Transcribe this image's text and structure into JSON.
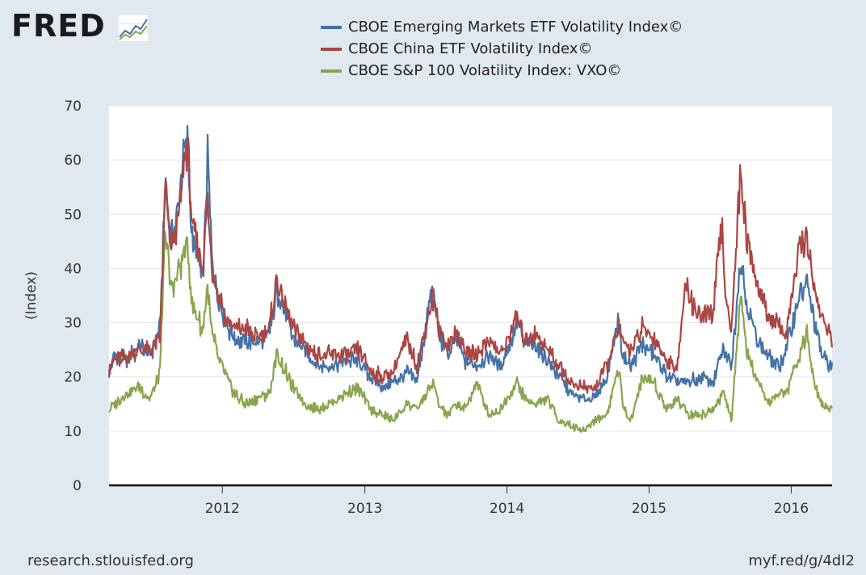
{
  "header": {
    "logo_text": "FRED",
    "logo_icon": "fred-graph-icon"
  },
  "footer": {
    "source": "research.stlouisfed.org",
    "short_link": "myf.red/g/4dI2"
  },
  "chart_data": {
    "type": "line",
    "title": "",
    "xlabel": "",
    "ylabel": "(Index)",
    "ylim": [
      0,
      70
    ],
    "yticks": [
      0,
      10,
      20,
      30,
      40,
      50,
      60,
      70
    ],
    "xlim": [
      "2011-03-16",
      "2016-04-15"
    ],
    "xticks": [
      {
        "label": "2012",
        "date": "2012-01-01"
      },
      {
        "label": "2013",
        "date": "2013-01-01"
      },
      {
        "label": "2014",
        "date": "2014-01-01"
      },
      {
        "label": "2015",
        "date": "2015-01-01"
      },
      {
        "label": "2016",
        "date": "2016-01-01"
      }
    ],
    "grid": true,
    "legend_position": "top",
    "series": [
      {
        "name": "CBOE Emerging Markets ETF Volatility Index©",
        "color": "#4572a7",
        "points": [
          [
            "2011-03-16",
            21
          ],
          [
            "2011-04-01",
            24
          ],
          [
            "2011-05-01",
            23
          ],
          [
            "2011-06-01",
            26
          ],
          [
            "2011-07-01",
            24
          ],
          [
            "2011-07-25",
            29
          ],
          [
            "2011-08-08",
            57
          ],
          [
            "2011-08-20",
            45
          ],
          [
            "2011-09-05",
            48
          ],
          [
            "2011-09-22",
            60
          ],
          [
            "2011-10-04",
            63
          ],
          [
            "2011-10-15",
            45
          ],
          [
            "2011-11-01",
            42
          ],
          [
            "2011-11-11",
            36
          ],
          [
            "2011-11-24",
            61
          ],
          [
            "2011-12-05",
            42
          ],
          [
            "2011-12-20",
            35
          ],
          [
            "2012-01-10",
            30
          ],
          [
            "2012-02-01",
            27
          ],
          [
            "2012-03-01",
            27
          ],
          [
            "2012-04-01",
            26
          ],
          [
            "2012-05-01",
            28
          ],
          [
            "2012-05-20",
            36
          ],
          [
            "2012-06-05",
            33
          ],
          [
            "2012-07-01",
            27
          ],
          [
            "2012-08-01",
            25
          ],
          [
            "2012-09-01",
            22
          ],
          [
            "2012-10-01",
            22
          ],
          [
            "2012-11-15",
            23
          ],
          [
            "2012-12-15",
            23
          ],
          [
            "2013-01-15",
            20
          ],
          [
            "2013-02-15",
            18
          ],
          [
            "2013-03-15",
            19
          ],
          [
            "2013-04-20",
            21
          ],
          [
            "2013-05-15",
            19
          ],
          [
            "2013-06-24",
            37
          ],
          [
            "2013-07-10",
            28
          ],
          [
            "2013-08-01",
            24
          ],
          [
            "2013-08-25",
            27
          ],
          [
            "2013-09-15",
            23
          ],
          [
            "2013-10-15",
            22
          ],
          [
            "2013-11-15",
            24
          ],
          [
            "2013-12-15",
            22
          ],
          [
            "2014-01-28",
            30
          ],
          [
            "2014-02-15",
            26
          ],
          [
            "2014-03-15",
            26
          ],
          [
            "2014-04-15",
            23
          ],
          [
            "2014-05-15",
            20
          ],
          [
            "2014-06-15",
            17
          ],
          [
            "2014-07-15",
            16
          ],
          [
            "2014-08-15",
            16
          ],
          [
            "2014-09-15",
            20
          ],
          [
            "2014-10-15",
            31
          ],
          [
            "2014-10-25",
            24
          ],
          [
            "2014-11-15",
            22
          ],
          [
            "2014-12-16",
            26
          ],
          [
            "2015-01-15",
            24
          ],
          [
            "2015-02-15",
            20
          ],
          [
            "2015-03-15",
            19
          ],
          [
            "2015-04-15",
            19
          ],
          [
            "2015-05-15",
            20
          ],
          [
            "2015-06-15",
            19
          ],
          [
            "2015-07-10",
            25
          ],
          [
            "2015-08-01",
            22
          ],
          [
            "2015-08-24",
            42
          ],
          [
            "2015-09-10",
            33
          ],
          [
            "2015-10-01",
            28
          ],
          [
            "2015-11-01",
            24
          ],
          [
            "2015-12-01",
            22
          ],
          [
            "2015-12-20",
            25
          ],
          [
            "2016-01-20",
            35
          ],
          [
            "2016-02-11",
            37
          ],
          [
            "2016-03-01",
            30
          ],
          [
            "2016-03-20",
            24
          ],
          [
            "2016-04-15",
            22
          ]
        ]
      },
      {
        "name": "CBOE China ETF Volatility Index©",
        "color": "#aa4643",
        "points": [
          [
            "2011-03-16",
            22
          ],
          [
            "2011-04-01",
            23
          ],
          [
            "2011-05-01",
            24
          ],
          [
            "2011-06-01",
            25
          ],
          [
            "2011-07-01",
            25
          ],
          [
            "2011-07-25",
            27
          ],
          [
            "2011-08-08",
            56
          ],
          [
            "2011-08-20",
            44
          ],
          [
            "2011-09-05",
            46
          ],
          [
            "2011-09-22",
            58
          ],
          [
            "2011-10-04",
            64
          ],
          [
            "2011-10-15",
            47
          ],
          [
            "2011-11-01",
            44
          ],
          [
            "2011-11-11",
            40
          ],
          [
            "2011-11-24",
            52
          ],
          [
            "2011-12-05",
            40
          ],
          [
            "2011-12-20",
            36
          ],
          [
            "2012-01-10",
            31
          ],
          [
            "2012-02-01",
            29
          ],
          [
            "2012-03-01",
            29
          ],
          [
            "2012-04-01",
            27
          ],
          [
            "2012-05-01",
            29
          ],
          [
            "2012-05-20",
            38
          ],
          [
            "2012-06-05",
            34
          ],
          [
            "2012-07-01",
            29
          ],
          [
            "2012-08-01",
            26
          ],
          [
            "2012-09-01",
            24
          ],
          [
            "2012-10-01",
            24
          ],
          [
            "2012-11-15",
            24
          ],
          [
            "2012-12-15",
            25
          ],
          [
            "2013-01-15",
            21
          ],
          [
            "2013-02-15",
            20
          ],
          [
            "2013-03-15",
            21
          ],
          [
            "2013-04-20",
            27
          ],
          [
            "2013-05-15",
            22
          ],
          [
            "2013-06-24",
            35
          ],
          [
            "2013-07-10",
            29
          ],
          [
            "2013-08-01",
            26
          ],
          [
            "2013-08-25",
            28
          ],
          [
            "2013-09-15",
            25
          ],
          [
            "2013-10-15",
            24
          ],
          [
            "2013-11-15",
            27
          ],
          [
            "2013-12-15",
            24
          ],
          [
            "2014-01-28",
            31
          ],
          [
            "2014-02-15",
            27
          ],
          [
            "2014-03-15",
            28
          ],
          [
            "2014-04-15",
            25
          ],
          [
            "2014-05-15",
            22
          ],
          [
            "2014-06-15",
            19
          ],
          [
            "2014-07-15",
            18
          ],
          [
            "2014-08-15",
            18
          ],
          [
            "2014-09-15",
            22
          ],
          [
            "2014-10-15",
            29
          ],
          [
            "2014-10-25",
            26
          ],
          [
            "2014-11-15",
            25
          ],
          [
            "2014-12-16",
            29
          ],
          [
            "2015-01-15",
            27
          ],
          [
            "2015-02-15",
            23
          ],
          [
            "2015-03-15",
            22
          ],
          [
            "2015-04-05",
            37
          ],
          [
            "2015-04-25",
            33
          ],
          [
            "2015-05-15",
            31
          ],
          [
            "2015-06-15",
            32
          ],
          [
            "2015-07-06",
            48
          ],
          [
            "2015-07-20",
            32
          ],
          [
            "2015-08-01",
            30
          ],
          [
            "2015-08-24",
            58
          ],
          [
            "2015-09-10",
            45
          ],
          [
            "2015-10-01",
            38
          ],
          [
            "2015-11-01",
            32
          ],
          [
            "2015-12-01",
            29
          ],
          [
            "2015-12-20",
            28
          ],
          [
            "2016-01-20",
            43
          ],
          [
            "2016-02-11",
            46
          ],
          [
            "2016-03-01",
            36
          ],
          [
            "2016-03-20",
            31
          ],
          [
            "2016-04-15",
            27
          ]
        ]
      },
      {
        "name": "CBOE S&P 100 Volatility Index: VXO©",
        "color": "#89a54e",
        "points": [
          [
            "2011-03-16",
            14
          ],
          [
            "2011-04-01",
            15
          ],
          [
            "2011-05-01",
            17
          ],
          [
            "2011-06-01",
            18
          ],
          [
            "2011-07-01",
            16
          ],
          [
            "2011-07-25",
            21
          ],
          [
            "2011-08-08",
            48
          ],
          [
            "2011-08-20",
            36
          ],
          [
            "2011-09-05",
            38
          ],
          [
            "2011-09-22",
            42
          ],
          [
            "2011-10-04",
            45
          ],
          [
            "2011-10-15",
            33
          ],
          [
            "2011-11-01",
            31
          ],
          [
            "2011-11-11",
            28
          ],
          [
            "2011-11-24",
            36
          ],
          [
            "2011-12-05",
            28
          ],
          [
            "2011-12-20",
            24
          ],
          [
            "2012-01-10",
            20
          ],
          [
            "2012-02-01",
            17
          ],
          [
            "2012-03-01",
            15
          ],
          [
            "2012-04-01",
            16
          ],
          [
            "2012-05-01",
            17
          ],
          [
            "2012-05-20",
            24
          ],
          [
            "2012-06-05",
            22
          ],
          [
            "2012-07-01",
            18
          ],
          [
            "2012-08-01",
            15
          ],
          [
            "2012-09-01",
            14
          ],
          [
            "2012-10-01",
            15
          ],
          [
            "2012-11-15",
            17
          ],
          [
            "2012-12-15",
            18
          ],
          [
            "2013-01-15",
            14
          ],
          [
            "2013-02-15",
            13
          ],
          [
            "2013-03-15",
            12
          ],
          [
            "2013-04-20",
            15
          ],
          [
            "2013-05-15",
            14
          ],
          [
            "2013-06-24",
            19
          ],
          [
            "2013-07-10",
            15
          ],
          [
            "2013-08-01",
            13
          ],
          [
            "2013-08-25",
            15
          ],
          [
            "2013-09-15",
            14
          ],
          [
            "2013-10-15",
            19
          ],
          [
            "2013-11-15",
            13
          ],
          [
            "2013-12-15",
            14
          ],
          [
            "2014-01-28",
            19
          ],
          [
            "2014-02-15",
            16
          ],
          [
            "2014-03-15",
            15
          ],
          [
            "2014-04-15",
            16
          ],
          [
            "2014-05-15",
            12
          ],
          [
            "2014-06-15",
            11
          ],
          [
            "2014-07-15",
            10
          ],
          [
            "2014-08-15",
            12
          ],
          [
            "2014-09-15",
            13
          ],
          [
            "2014-10-15",
            22
          ],
          [
            "2014-10-25",
            15
          ],
          [
            "2014-11-15",
            12
          ],
          [
            "2014-12-16",
            20
          ],
          [
            "2015-01-15",
            19
          ],
          [
            "2015-02-15",
            14
          ],
          [
            "2015-03-15",
            16
          ],
          [
            "2015-04-15",
            13
          ],
          [
            "2015-05-15",
            13
          ],
          [
            "2015-06-15",
            14
          ],
          [
            "2015-07-10",
            17
          ],
          [
            "2015-08-01",
            12
          ],
          [
            "2015-08-24",
            35
          ],
          [
            "2015-09-10",
            24
          ],
          [
            "2015-10-01",
            20
          ],
          [
            "2015-11-01",
            15
          ],
          [
            "2015-12-01",
            17
          ],
          [
            "2015-12-20",
            17
          ],
          [
            "2016-01-20",
            24
          ],
          [
            "2016-02-11",
            28
          ],
          [
            "2016-03-01",
            19
          ],
          [
            "2016-03-20",
            15
          ],
          [
            "2016-04-15",
            14
          ]
        ]
      }
    ]
  }
}
